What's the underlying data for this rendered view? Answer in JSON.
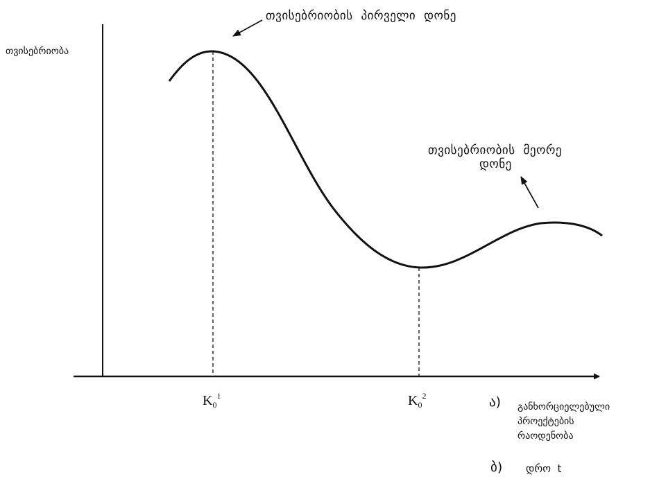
{
  "y_axis_label": "თვისებრიობა",
  "first_level_label": "თვისებრიობის პირველი დონე",
  "second_level_label_line1": "თვისებრიობის მეორე",
  "second_level_label_line2": "დონე",
  "tick_k1": {
    "base": "K",
    "sub": "0",
    "sup": "1"
  },
  "tick_k2": {
    "base": "K",
    "sub": "0",
    "sup": "2"
  },
  "x_axis_a_marker": "ა)",
  "x_axis_a_line1": "განხორციელებული",
  "x_axis_a_line2": "პროექტების",
  "x_axis_a_line3": "რაოდენობა",
  "x_axis_b_marker": "ბ)",
  "x_axis_b_text": "დრო  t",
  "colors": {
    "ink": "#111111",
    "background": "#ffffff"
  }
}
